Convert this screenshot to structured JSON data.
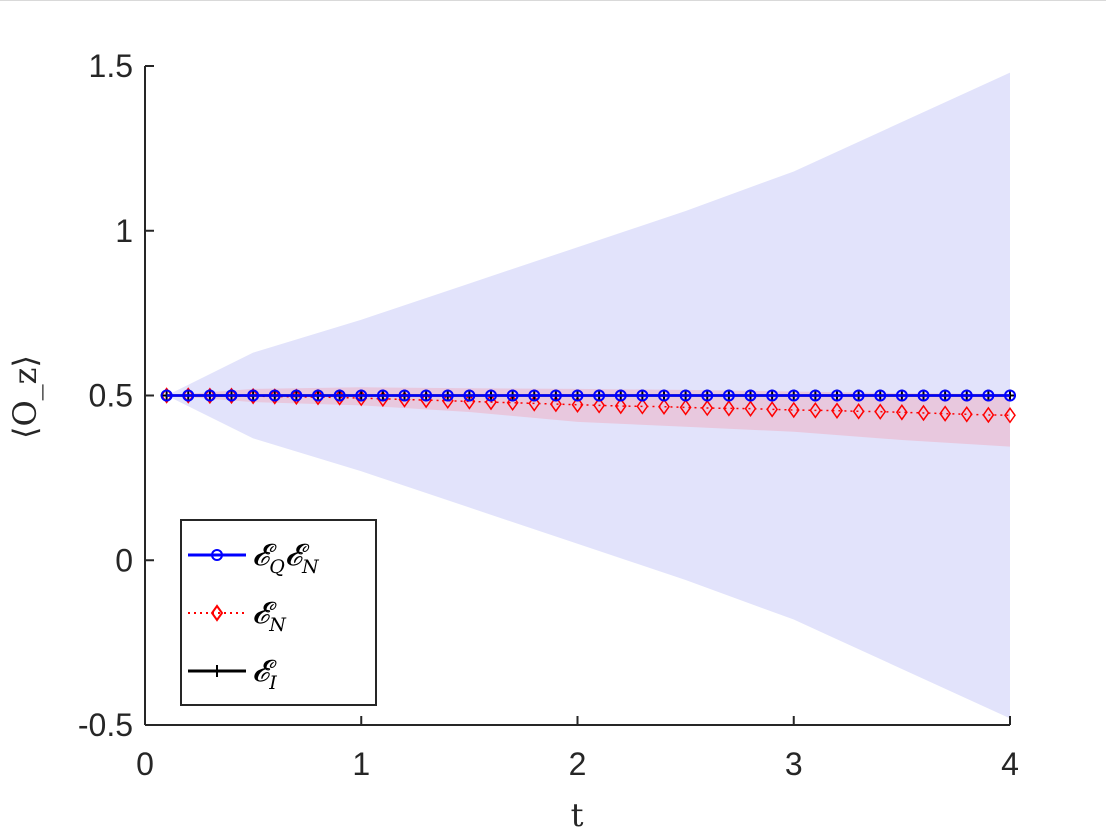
{
  "chart_data": {
    "type": "line",
    "xlabel": "t",
    "ylabel": "⟨O_z⟩",
    "xlim": [
      0,
      4
    ],
    "ylim": [
      -0.5,
      1.5
    ],
    "xticks": [
      "0",
      "1",
      "2",
      "3",
      "4"
    ],
    "yticks": [
      "-0.5",
      "0",
      "0.5",
      "1",
      "1.5"
    ],
    "grid": false,
    "legend_position": "bottom-left",
    "colors": {
      "blue": "#0000ff",
      "red": "#ff0000",
      "black": "#000000",
      "blue_band": "#e2e3fb",
      "red_band": "#e8c8de",
      "axis": "#262626"
    },
    "series": [
      {
        "name": "𝓔_Q𝓔_N",
        "legend_main1": "𝓔",
        "legend_sub1": "Q",
        "legend_main2": "𝓔",
        "legend_sub2": "N",
        "color": "#0000ff",
        "marker": "circle",
        "linestyle": "solid",
        "x_start": 0.1,
        "x_step": 0.1,
        "count": 40,
        "values": [
          0.5,
          0.5,
          0.5,
          0.5,
          0.5,
          0.5,
          0.5,
          0.5,
          0.5,
          0.5,
          0.5,
          0.5,
          0.5,
          0.5,
          0.5,
          0.5,
          0.5,
          0.5,
          0.5,
          0.5,
          0.5,
          0.5,
          0.5,
          0.5,
          0.5,
          0.5,
          0.5,
          0.5,
          0.5,
          0.5,
          0.5,
          0.5,
          0.5,
          0.5,
          0.5,
          0.5,
          0.5,
          0.5,
          0.5,
          0.5
        ]
      },
      {
        "name": "𝓔_N",
        "legend_main1": "𝓔",
        "legend_sub1": "N",
        "color": "#ff0000",
        "marker": "diamond",
        "linestyle": "dotted",
        "x_start": 0.1,
        "x_step": 0.1,
        "count": 40,
        "values": [
          0.5,
          0.5,
          0.499,
          0.499,
          0.498,
          0.497,
          0.496,
          0.495,
          0.494,
          0.492,
          0.49,
          0.488,
          0.486,
          0.484,
          0.482,
          0.48,
          0.478,
          0.476,
          0.474,
          0.472,
          0.47,
          0.468,
          0.467,
          0.466,
          0.464,
          0.462,
          0.461,
          0.46,
          0.458,
          0.456,
          0.455,
          0.454,
          0.452,
          0.451,
          0.449,
          0.447,
          0.445,
          0.443,
          0.441,
          0.44
        ]
      },
      {
        "name": "𝓔_I",
        "legend_main1": "𝓔",
        "legend_sub1": "I",
        "color": "#000000",
        "marker": "plus",
        "linestyle": "solid",
        "x_start": 0.1,
        "x_step": 0.1,
        "count": 40,
        "values": [
          0.5,
          0.5,
          0.5,
          0.5,
          0.5,
          0.5,
          0.5,
          0.5,
          0.5,
          0.5,
          0.5,
          0.5,
          0.5,
          0.5,
          0.5,
          0.5,
          0.5,
          0.5,
          0.5,
          0.5,
          0.5,
          0.5,
          0.5,
          0.5,
          0.5,
          0.5,
          0.5,
          0.5,
          0.5,
          0.5,
          0.5,
          0.5,
          0.5,
          0.5,
          0.5,
          0.5,
          0.5,
          0.5,
          0.5,
          0.5
        ]
      }
    ],
    "bands": [
      {
        "color": "#e2e3fb",
        "x": [
          0.1,
          0.5,
          1.0,
          1.5,
          2.0,
          2.5,
          3.0,
          3.5,
          4.0
        ],
        "upper": [
          0.5,
          0.63,
          0.73,
          0.84,
          0.95,
          1.06,
          1.18,
          1.33,
          1.48
        ],
        "lower": [
          0.5,
          0.37,
          0.27,
          0.16,
          0.05,
          -0.06,
          -0.18,
          -0.33,
          -0.48
        ]
      },
      {
        "color": "#e8c8de",
        "x": [
          0.1,
          0.5,
          1.0,
          1.5,
          2.0,
          2.5,
          3.0,
          3.5,
          4.0
        ],
        "upper": [
          0.5,
          0.52,
          0.525,
          0.522,
          0.52,
          0.517,
          0.512,
          0.507,
          0.505
        ],
        "lower": [
          0.5,
          0.48,
          0.47,
          0.45,
          0.42,
          0.405,
          0.39,
          0.365,
          0.345
        ]
      }
    ]
  }
}
